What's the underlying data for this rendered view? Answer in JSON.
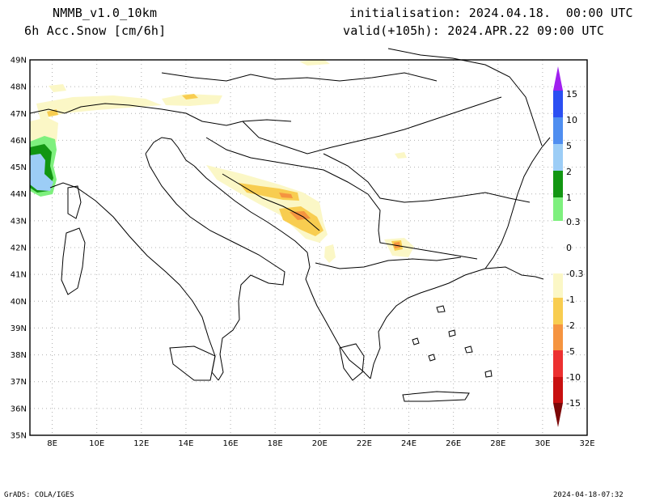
{
  "header": {
    "model": "NMMB_v1.0_10km",
    "variable": "6h Acc.Snow [cm/6h]",
    "init": "initialisation: 2024.04.18.  00:00 UTC",
    "valid": "valid(+105h): 2024.APR.22 09:00 UTC"
  },
  "footer": {
    "left": "GrADS: COLA/IGES",
    "right": "2024-04-18-07:32"
  },
  "axes": {
    "lat_labels": [
      "49N",
      "48N",
      "47N",
      "46N",
      "45N",
      "44N",
      "43N",
      "42N",
      "41N",
      "40N",
      "39N",
      "38N",
      "37N",
      "36N",
      "35N"
    ],
    "lon_labels": [
      "8E",
      "10E",
      "12E",
      "14E",
      "16E",
      "18E",
      "20E",
      "22E",
      "24E",
      "26E",
      "28E",
      "30E",
      "32E"
    ]
  },
  "colorbar": {
    "labels": [
      "15",
      "10",
      "5",
      "2",
      "1",
      "0.3",
      "0",
      "-0.3",
      "-1",
      "-2",
      "-5",
      "-10",
      "-15"
    ],
    "colors": {
      "c15": "#a020f0",
      "c10": "#2b4ff2",
      "c5": "#4f8ef0",
      "c2": "#9ccdf6",
      "c1": "#129612",
      "c03": "#7ef07e",
      "n03": "#fbf7c6",
      "n1": "#f8cd50",
      "n2": "#f59440",
      "n5": "#ec3030",
      "n10": "#c81010",
      "n15": "#7c0808"
    }
  },
  "colors": {
    "coast": "#000000",
    "grid": "#b0b0b0",
    "frame": "#000000"
  }
}
